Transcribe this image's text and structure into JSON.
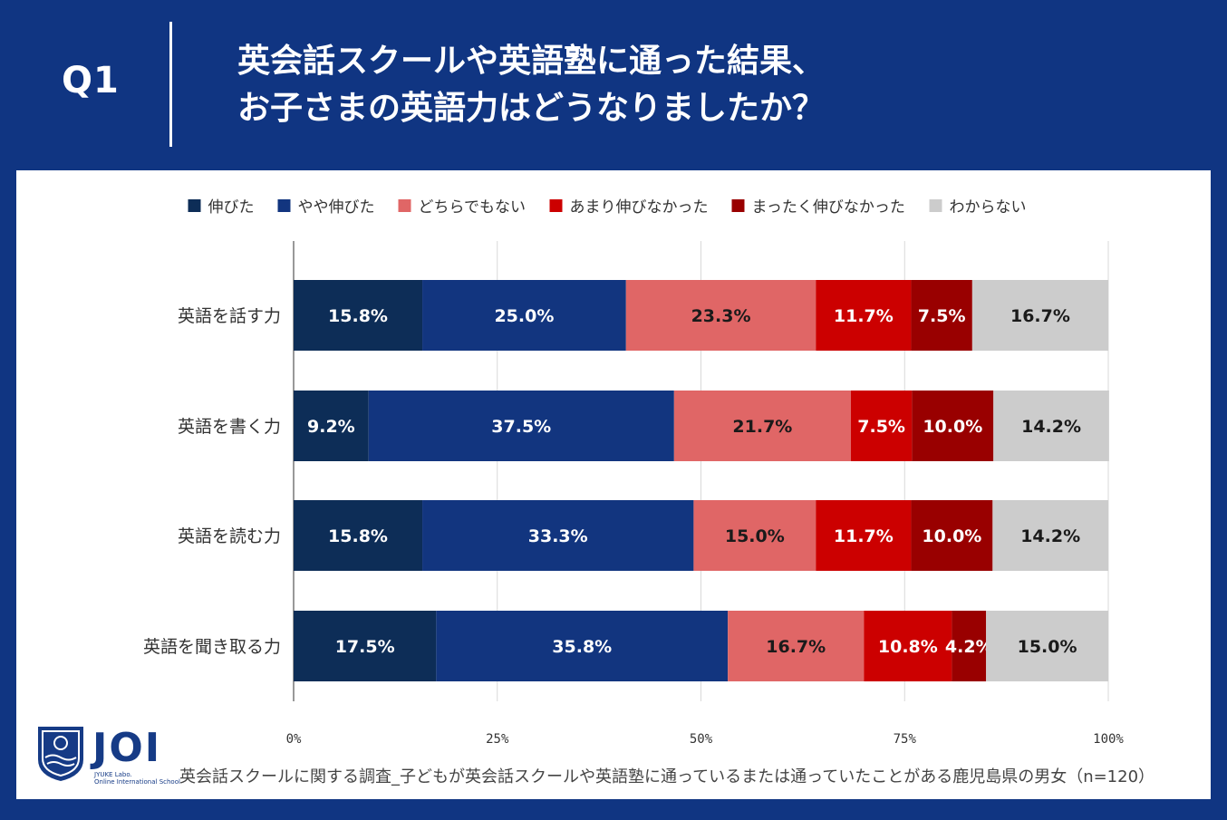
{
  "header": {
    "q_label": "Q1",
    "title_line1": "英会話スクールや英語塾に通った結果、",
    "title_line2": "お子さまの英語力はどうなりましたか？"
  },
  "chart_data": {
    "type": "bar",
    "orientation": "horizontal",
    "stacked": true,
    "categories": [
      "英語を話す力",
      "英語を書く力",
      "英語を読む力",
      "英語を聞き取る力"
    ],
    "series": [
      {
        "name": "伸びた",
        "color": "#0d2d57",
        "label_color": "#ffffff",
        "values": [
          15.8,
          9.2,
          15.8,
          17.5
        ],
        "labels": [
          "15.8%",
          "9.2%",
          "15.8%",
          "17.5%"
        ]
      },
      {
        "name": "やや伸びた",
        "color": "#12357f",
        "label_color": "#ffffff",
        "values": [
          25.0,
          37.5,
          33.3,
          35.8
        ],
        "labels": [
          "25.0%",
          "37.5%",
          "33.3%",
          "35.8%"
        ]
      },
      {
        "name": "どちらでもない",
        "color": "#e06666",
        "label_color": "#1a1a1a",
        "values": [
          23.3,
          21.7,
          15.0,
          16.7
        ],
        "labels": [
          "23.3%",
          "21.7%",
          "15.0%",
          "16.7%"
        ]
      },
      {
        "name": "あまり伸びなかった",
        "color": "#cc0000",
        "label_color": "#ffffff",
        "values": [
          11.7,
          7.5,
          11.7,
          10.8
        ],
        "labels": [
          "11.7%",
          "7.5%",
          "11.7%",
          "10.8%"
        ]
      },
      {
        "name": "まったく伸びなかった",
        "color": "#990000",
        "label_color": "#ffffff",
        "values": [
          7.5,
          10.0,
          10.0,
          4.2
        ],
        "labels": [
          "7.5%",
          "10.0%",
          "10.0%",
          "4.2%"
        ]
      },
      {
        "name": "わからない",
        "color": "#cccccc",
        "label_color": "#1a1a1a",
        "values": [
          16.7,
          14.2,
          14.2,
          15.0
        ],
        "labels": [
          "16.7%",
          "14.2%",
          "14.2%",
          "15.0%"
        ]
      }
    ],
    "x_ticks": [
      "0%",
      "25%",
      "50%",
      "75%",
      "100%"
    ],
    "xlim": [
      0,
      100
    ],
    "legend_position": "top",
    "grid": true
  },
  "logo": {
    "text": "JOI",
    "sub1": "JYUKE Labo.",
    "sub2": "Online International School"
  },
  "footnote": "英会話スクールに関する調査_子どもが英会話スクールや英語塾に通っているまたは通っていたことがある鹿児島県の男女（n=120）"
}
